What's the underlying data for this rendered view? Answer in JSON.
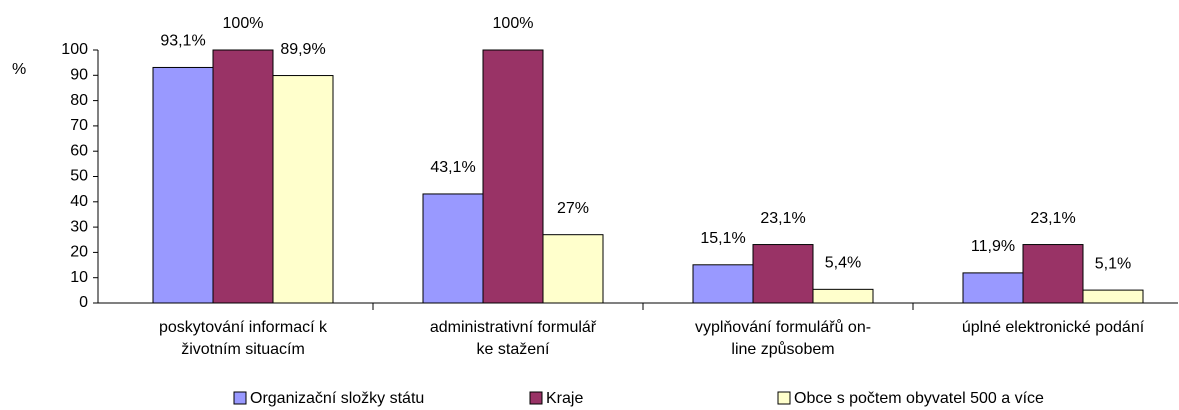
{
  "chart_data": {
    "type": "bar",
    "y_label": "%",
    "categories": [
      [
        "poskytování informací k",
        "životním situacím"
      ],
      [
        "administrativní formulář",
        "ke stažení"
      ],
      [
        "vyplňování formulářů on-",
        "line způsobem"
      ],
      [
        "úplné elektronické podání"
      ]
    ],
    "series": [
      {
        "name": "Organizační složky státu",
        "color": "#9999ff",
        "values": [
          93.1,
          43.1,
          15.1,
          11.9
        ],
        "value_labels": [
          "93,1%",
          "43,1%",
          "15,1%",
          "11,9%"
        ]
      },
      {
        "name": "Kraje",
        "color": "#993366",
        "values": [
          100,
          100,
          23.1,
          23.1
        ],
        "value_labels": [
          "100%",
          "100%",
          "23,1%",
          "23,1%"
        ]
      },
      {
        "name": "Obce s počtem obyvatel 500 a více",
        "color": "#ffffcc",
        "values": [
          89.9,
          27,
          5.4,
          5.1
        ],
        "value_labels": [
          "89,9%",
          "27%",
          "5,4%",
          "5,1%"
        ]
      }
    ],
    "ylim": [
      0,
      100
    ],
    "yticks": [
      0,
      10,
      20,
      30,
      40,
      50,
      60,
      70,
      80,
      90,
      100
    ],
    "legend": "bottom"
  }
}
